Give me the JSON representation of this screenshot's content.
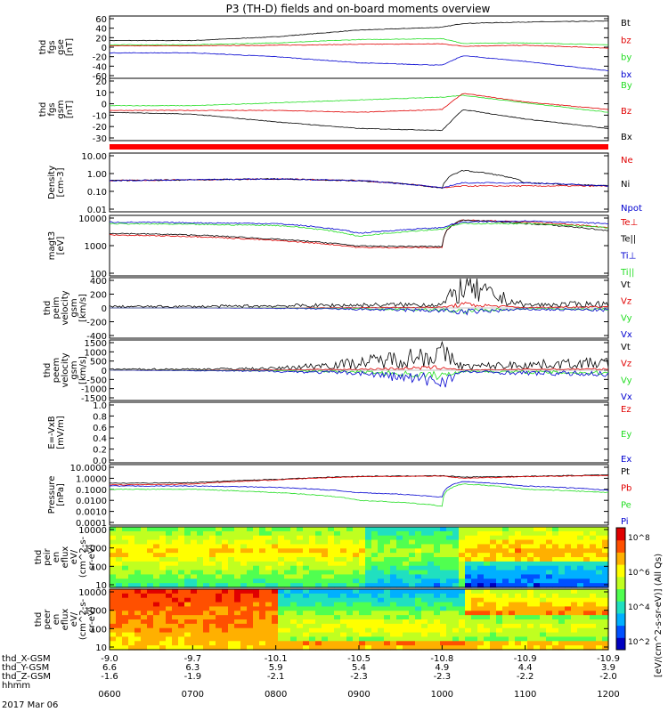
{
  "title": "P3 (TH-D) fields and on-board moments overview",
  "colors": {
    "black": "#000000",
    "red": "#e00000",
    "green": "#22dd22",
    "blue": "#0000d0"
  },
  "time_axis": {
    "ticks": [
      "0600",
      "0700",
      "0800",
      "0900",
      "1000",
      "1100",
      "1200"
    ],
    "rows": [
      {
        "label": "thd_X-GSM",
        "values": [
          "-9.0",
          "-9.7",
          "-10.1",
          "-10.5",
          "-10.8",
          "-10.9",
          "-10.9"
        ]
      },
      {
        "label": "thd_Y-GSM",
        "values": [
          "6.6",
          "6.3",
          "5.9",
          "5.4",
          "4.9",
          "4.4",
          "3.9"
        ]
      },
      {
        "label": "thd_Z-GSM",
        "values": [
          "-1.6",
          "-1.9",
          "-2.1",
          "-2.3",
          "-2.3",
          "-2.2",
          "-2.0"
        ]
      },
      {
        "label": "hhmm",
        "values": []
      }
    ],
    "date": "2017 Mar 06"
  },
  "panels": [
    {
      "ylabel": [
        "thd",
        "fgs",
        "gse",
        "[nT]"
      ],
      "yticks": [
        "60",
        "40",
        "20",
        "0",
        "-20",
        "-40",
        "-60"
      ],
      "legend": [
        {
          "t": "Bt",
          "c": "black"
        },
        {
          "t": "bz",
          "c": "red"
        },
        {
          "t": "by",
          "c": "green"
        },
        {
          "t": "bx",
          "c": "blue"
        }
      ]
    },
    {
      "ylabel": [
        "thd",
        "fgs",
        "gsm",
        "[nT]"
      ],
      "yticks": [
        "20",
        "10",
        "0",
        "-10",
        "-20",
        "-30"
      ],
      "legend": [
        {
          "t": "By",
          "c": "green"
        },
        {
          "t": "Bz",
          "c": "red"
        },
        {
          "t": "Bx",
          "c": "black"
        }
      ]
    },
    {
      "ylabel": [
        "Density",
        "[cm-3]"
      ],
      "yticks": [
        "10.00",
        "1.00",
        "0.10",
        "0.01"
      ],
      "legend": [
        {
          "t": "Ne",
          "c": "red"
        },
        {
          "t": "Ni",
          "c": "black"
        },
        {
          "t": "Npot",
          "c": "blue"
        }
      ]
    },
    {
      "ylabel": [
        "magt3",
        "[eV]"
      ],
      "yticks": [
        "10000",
        "1000",
        "100"
      ],
      "legend": [
        {
          "t": "Te⊥",
          "c": "red"
        },
        {
          "t": "Te||",
          "c": "black"
        },
        {
          "t": "Ti⊥",
          "c": "blue"
        },
        {
          "t": "Ti||",
          "c": "green"
        }
      ]
    },
    {
      "ylabel": [
        "thd",
        "peim",
        "velocity",
        "gsm",
        "[km/s]"
      ],
      "yticks": [
        "400",
        "200",
        "0",
        "-200",
        "-400"
      ],
      "legend": [
        {
          "t": "Vt",
          "c": "black"
        },
        {
          "t": "Vz",
          "c": "red"
        },
        {
          "t": "Vy",
          "c": "green"
        },
        {
          "t": "Vx",
          "c": "blue"
        }
      ]
    },
    {
      "ylabel": [
        "thd",
        "peem",
        "velocity",
        "gsm",
        "[km/s]"
      ],
      "yticks": [
        "1500",
        "1000",
        "500",
        "0",
        "-500",
        "-1000",
        "-1500"
      ],
      "legend": [
        {
          "t": "Vt",
          "c": "black"
        },
        {
          "t": "Vz",
          "c": "red"
        },
        {
          "t": "Vy",
          "c": "green"
        },
        {
          "t": "Vx",
          "c": "blue"
        }
      ]
    },
    {
      "ylabel": [
        "E=-VxB",
        "[mV/m]"
      ],
      "yticks": [
        "1.0",
        "0.8",
        "0.6",
        "0.4",
        "0.2",
        "0.0"
      ],
      "legend": [
        {
          "t": "Ez",
          "c": "red"
        },
        {
          "t": "Ey",
          "c": "green"
        },
        {
          "t": "Ex",
          "c": "blue"
        }
      ]
    },
    {
      "ylabel": [
        "Pressure",
        "[nPa]"
      ],
      "yticks": [
        "10.0000",
        "1.0000",
        "0.1000",
        "0.0100",
        "0.0010",
        "0.0001"
      ],
      "legend": [
        {
          "t": "Pt",
          "c": "black"
        },
        {
          "t": "Pb",
          "c": "red"
        },
        {
          "t": "Pe",
          "c": "green"
        },
        {
          "t": "Pi",
          "c": "blue"
        }
      ]
    },
    {
      "ylabel": [
        "thd",
        "peir",
        "en",
        "eflux",
        "eV/",
        "(cm^2-s-",
        "sr-eV)"
      ],
      "yticks": [
        "10000",
        "1000",
        "100",
        "10"
      ]
    },
    {
      "ylabel": [
        "thd",
        "peer",
        "en",
        "eflux",
        "eV/",
        "(cm^2-s-",
        "sr-eV)"
      ],
      "yticks": [
        "10000",
        "1000",
        "100",
        "10"
      ]
    }
  ],
  "colorbar": {
    "ticks": [
      "10^8",
      "10^6",
      "10^4",
      "10^2"
    ],
    "label": "[eV/(cm^2-s-sr-eV)] (All Qs)"
  },
  "chart_data": [
    {
      "type": "line",
      "title": "thd fgs gse [nT]",
      "x": [
        "0600",
        "0700",
        "0800",
        "0900",
        "1000",
        "1015",
        "1100",
        "1200"
      ],
      "ylim": [
        -60,
        60
      ],
      "series": [
        {
          "name": "Bt",
          "values": [
            14,
            14,
            22,
            36,
            42,
            50,
            53,
            55
          ]
        },
        {
          "name": "bz",
          "values": [
            3,
            3,
            4,
            6,
            7,
            2,
            4,
            -2
          ]
        },
        {
          "name": "by",
          "values": [
            5,
            5,
            9,
            16,
            18,
            8,
            9,
            5
          ]
        },
        {
          "name": "bx",
          "values": [
            -12,
            -12,
            -20,
            -33,
            -38,
            -18,
            -30,
            -50
          ]
        }
      ]
    },
    {
      "type": "line",
      "title": "thd fgs gsm [nT]",
      "x": [
        "0600",
        "0700",
        "0800",
        "0900",
        "1000",
        "1015",
        "1100",
        "1200"
      ],
      "ylim": [
        -35,
        25
      ],
      "series": [
        {
          "name": "By",
          "values": [
            -1,
            -1,
            2,
            5,
            8,
            10,
            2,
            -8
          ]
        },
        {
          "name": "Bz",
          "values": [
            -6,
            -6,
            -6,
            -8,
            -5,
            12,
            3,
            -5
          ]
        },
        {
          "name": "Bx",
          "values": [
            -8,
            -10,
            -18,
            -25,
            -27,
            -5,
            -15,
            -25
          ]
        }
      ]
    },
    {
      "type": "line",
      "title": "Density [cm-3]",
      "x": [
        "0600",
        "0700",
        "0800",
        "0900",
        "1000",
        "1015",
        "1100",
        "1200"
      ],
      "ylim": [
        0.01,
        10
      ],
      "series": [
        {
          "name": "Ne",
          "values": [
            0.4,
            0.45,
            0.5,
            0.4,
            0.15,
            0.2,
            0.2,
            0.2
          ]
        },
        {
          "name": "Ni",
          "values": [
            0.4,
            0.45,
            0.5,
            0.4,
            0.15,
            1.5,
            0.3,
            0.2
          ]
        },
        {
          "name": "Npot",
          "values": [
            0.4,
            0.45,
            0.5,
            0.4,
            0.15,
            0.3,
            0.3,
            0.2
          ]
        }
      ]
    },
    {
      "type": "line",
      "title": "magt3 [eV]",
      "x": [
        "0600",
        "0700",
        "0800",
        "0900",
        "1000",
        "1015",
        "1100",
        "1200"
      ],
      "ylim": [
        10,
        10000
      ],
      "series": [
        {
          "name": "Te⊥",
          "values": [
            1200,
            1000,
            600,
            250,
            250,
            8000,
            6000,
            3000
          ]
        },
        {
          "name": "Te||",
          "values": [
            1500,
            1200,
            700,
            300,
            280,
            8000,
            5000,
            2000
          ]
        },
        {
          "name": "Ti⊥",
          "values": [
            6000,
            5500,
            5000,
            1500,
            3000,
            6000,
            7000,
            5000
          ]
        },
        {
          "name": "Ti||",
          "values": [
            5000,
            4500,
            4000,
            1000,
            2500,
            5000,
            5000,
            3000
          ]
        }
      ]
    },
    {
      "type": "line",
      "title": "thd peim velocity gsm [km/s]",
      "x": [
        "0600",
        "0700",
        "0800",
        "0900",
        "1000",
        "1015",
        "1100",
        "1200"
      ],
      "ylim": [
        -400,
        400
      ],
      "series": [
        {
          "name": "Vt",
          "values": [
            20,
            20,
            30,
            40,
            50,
            300,
            40,
            60
          ]
        },
        {
          "name": "Vz",
          "values": [
            0,
            0,
            0,
            5,
            10,
            50,
            5,
            20
          ]
        },
        {
          "name": "Vy",
          "values": [
            0,
            0,
            0,
            -10,
            -30,
            -50,
            -10,
            -20
          ]
        },
        {
          "name": "Vx",
          "values": [
            0,
            0,
            -5,
            -20,
            -40,
            -60,
            -20,
            -30
          ]
        }
      ]
    },
    {
      "type": "line",
      "title": "thd peem velocity gsm [km/s]",
      "x": [
        "0600",
        "0700",
        "0800",
        "0900",
        "1000",
        "1015",
        "1100",
        "1200"
      ],
      "ylim": [
        -1500,
        1500
      ],
      "series": [
        {
          "name": "Vt",
          "values": [
            50,
            60,
            100,
            400,
            900,
            200,
            300,
            400
          ]
        },
        {
          "name": "Vz",
          "values": [
            0,
            0,
            20,
            50,
            150,
            10,
            50,
            60
          ]
        },
        {
          "name": "Vy",
          "values": [
            0,
            -10,
            -30,
            -80,
            -300,
            -50,
            -100,
            -150
          ]
        },
        {
          "name": "Vx",
          "values": [
            0,
            -20,
            -60,
            -150,
            -600,
            -80,
            -150,
            -200
          ]
        }
      ]
    },
    {
      "type": "line",
      "title": "E=-VxB [mV/m]",
      "x": [],
      "ylim": [
        0,
        1
      ],
      "series": []
    },
    {
      "type": "line",
      "title": "Pressure [nPa]",
      "x": [
        "0600",
        "0700",
        "0800",
        "0900",
        "1000",
        "1015",
        "1100",
        "1200"
      ],
      "ylim": [
        0.0001,
        10
      ],
      "series": [
        {
          "name": "Pt",
          "values": [
            0.35,
            0.4,
            0.8,
            1.5,
            1.7,
            1.3,
            1.5,
            2.0
          ]
        },
        {
          "name": "Pb",
          "values": [
            0.25,
            0.3,
            0.7,
            1.4,
            1.6,
            1.0,
            1.4,
            1.8
          ]
        },
        {
          "name": "Pe",
          "values": [
            0.1,
            0.1,
            0.05,
            0.01,
            0.003,
            0.3,
            0.1,
            0.05
          ]
        },
        {
          "name": "Pi",
          "values": [
            0.2,
            0.2,
            0.15,
            0.05,
            0.02,
            0.5,
            0.2,
            0.08
          ]
        }
      ]
    },
    {
      "type": "heatmap",
      "title": "thd peir en eflux",
      "ylim": [
        10,
        10000
      ],
      "x": [
        "0600",
        "0700",
        "0800",
        "0900",
        "1000",
        "1100",
        "1200"
      ],
      "z_range": [
        "10^2",
        "10^8"
      ]
    },
    {
      "type": "heatmap",
      "title": "thd peer en eflux",
      "ylim": [
        10,
        10000
      ],
      "x": [
        "0600",
        "0700",
        "0800",
        "0900",
        "1000",
        "1100",
        "1200"
      ],
      "z_range": [
        "10^2",
        "10^8"
      ]
    }
  ]
}
